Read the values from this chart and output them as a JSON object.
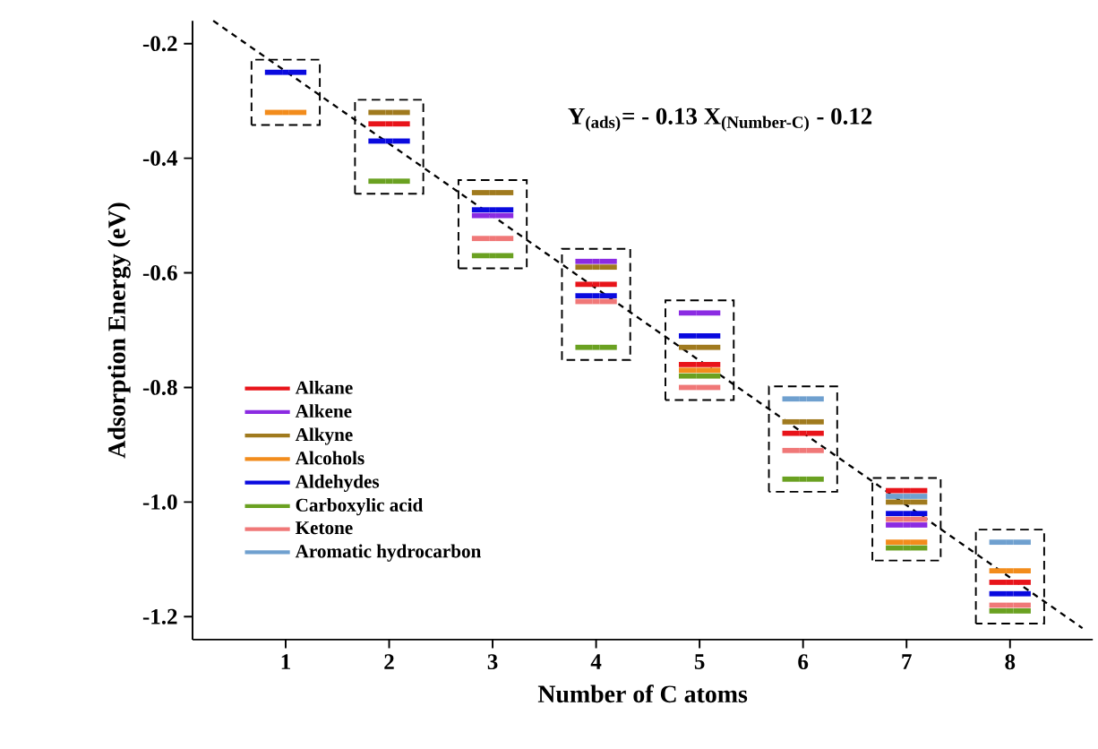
{
  "chart_data": {
    "type": "scatter",
    "xlabel": "Number of C atoms",
    "ylabel": "Adsorption Energy (eV)",
    "xlim": [
      0.1,
      8.8
    ],
    "ylim": [
      -1.24,
      -0.16
    ],
    "xticks": [
      1,
      2,
      3,
      4,
      5,
      6,
      7,
      8
    ],
    "yticks": [
      -0.2,
      -0.4,
      -0.6,
      -0.8,
      {
        "value": -1.0,
        "label": "-1.0"
      },
      -1.2
    ],
    "legend": "left",
    "annotations": [
      "Y$_{(ads)}$= - 0.13 X$_{(Number-C)}$ - 0.12"
    ],
    "series": [
      {
        "name": "Alkane",
        "color": "#e8141a",
        "x": [
          2,
          4,
          5,
          6,
          7,
          8
        ],
        "values": [
          -0.34,
          -0.62,
          -0.76,
          -0.88,
          -0.98,
          -1.14
        ]
      },
      {
        "name": "Alkene",
        "color": "#8b2be2",
        "x": [
          3,
          4,
          5,
          7
        ],
        "values": [
          -0.5,
          -0.58,
          -0.67,
          -1.04
        ]
      },
      {
        "name": "Alkyne",
        "color": "#a07a1e",
        "x": [
          2,
          3,
          4,
          5,
          6,
          7
        ],
        "values": [
          -0.32,
          -0.46,
          -0.59,
          -0.73,
          -0.86,
          -1.0
        ]
      },
      {
        "name": "Alcohols",
        "color": "#f28c1c",
        "x": [
          1,
          5,
          7,
          8
        ],
        "values": [
          -0.32,
          -0.77,
          -1.07,
          -1.12
        ]
      },
      {
        "name": "Aldehydes",
        "color": "#0a0adf",
        "x": [
          1,
          2,
          3,
          4,
          5,
          7,
          8
        ],
        "values": [
          -0.25,
          -0.37,
          -0.49,
          -0.64,
          -0.71,
          -1.02,
          -1.16
        ]
      },
      {
        "name": "Carboxylic acid",
        "color": "#6aa121",
        "x": [
          2,
          3,
          4,
          5,
          6,
          7,
          8
        ],
        "values": [
          -0.44,
          -0.57,
          -0.73,
          -0.78,
          -0.96,
          -1.08,
          -1.19
        ]
      },
      {
        "name": "Ketone",
        "color": "#f07878",
        "x": [
          3,
          4,
          5,
          6,
          7,
          8
        ],
        "values": [
          -0.54,
          -0.65,
          -0.8,
          -0.91,
          -1.03,
          -1.18
        ]
      },
      {
        "name": "Aromatic hydrocarbon",
        "color": "#6fa0cf",
        "x": [
          6,
          7,
          8
        ],
        "values": [
          -0.82,
          -0.99,
          -1.07
        ]
      },
      {
        "type": "line",
        "x": [
          0.3,
          8.7
        ],
        "values": [
          -0.16,
          -1.22
        ],
        "color": "#000000",
        "line_style": "dashed"
      }
    ]
  }
}
